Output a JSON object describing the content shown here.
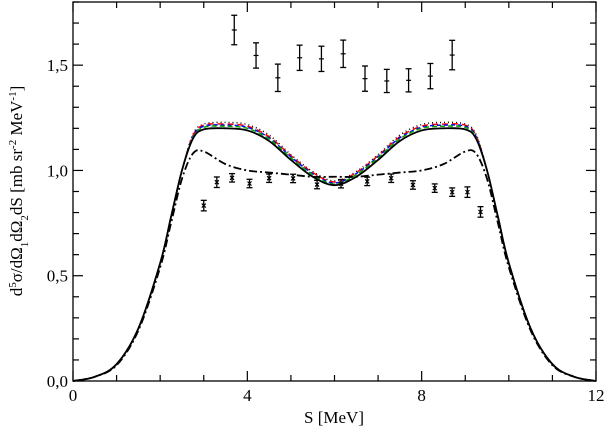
{
  "chart_data": {
    "type": "line",
    "xlabel": "S [MeV]",
    "ylabel_parts": [
      {
        "t": "d",
        "s": ""
      },
      {
        "t": "5",
        "s": "sup"
      },
      {
        "t": "σ/dΩ",
        "s": ""
      },
      {
        "t": "1",
        "s": "sub"
      },
      {
        "t": "dΩ",
        "s": ""
      },
      {
        "t": "2",
        "s": "sub"
      },
      {
        "t": "dS [mb sr",
        "s": ""
      },
      {
        "t": "-2",
        "s": "sup"
      },
      {
        "t": " MeV",
        "s": ""
      },
      {
        "t": "-1",
        "s": "sup"
      },
      {
        "t": "]",
        "s": ""
      }
    ],
    "xlim": [
      0,
      12
    ],
    "ylim": [
      0,
      1.8
    ],
    "x_ticks": [
      {
        "v": 0,
        "label": "0"
      },
      {
        "v": 4,
        "label": "4"
      },
      {
        "v": 8,
        "label": "8"
      },
      {
        "v": 12,
        "label": "12"
      }
    ],
    "y_ticks": [
      {
        "v": 0,
        "label": "0,0"
      },
      {
        "v": 0.5,
        "label": "0,5"
      },
      {
        "v": 1.0,
        "label": "1,0"
      },
      {
        "v": 1.5,
        "label": "1,5"
      }
    ],
    "grid": false,
    "half_curves_x": [
      0,
      0.5,
      1,
      1.5,
      2,
      2.25,
      2.5,
      2.75,
      3,
      3.5,
      4,
      4.5,
      5,
      5.5,
      6
    ],
    "series": [
      {
        "name": "solid",
        "color": "#000000",
        "dash": "",
        "values": [
          0,
          0.02,
          0.08,
          0.25,
          0.56,
          0.78,
          1.0,
          1.15,
          1.195,
          1.2,
          1.19,
          1.14,
          1.05,
          0.97,
          0.93
        ]
      },
      {
        "name": "dash-dot",
        "color": "#000000",
        "dash": "8,3,2,3",
        "values": [
          0,
          0.02,
          0.075,
          0.24,
          0.54,
          0.75,
          0.96,
          1.08,
          1.09,
          1.03,
          1.0,
          0.99,
          0.98,
          0.97,
          0.97
        ]
      },
      {
        "name": "green-dashed",
        "color": "#00a000",
        "dash": "5,3",
        "values": [
          0,
          0.02,
          0.08,
          0.25,
          0.56,
          0.78,
          1.0,
          1.155,
          1.205,
          1.21,
          1.2,
          1.15,
          1.06,
          0.98,
          0.935
        ]
      },
      {
        "name": "blue-dashed",
        "color": "#0000ff",
        "dash": "4,3",
        "values": [
          0,
          0.02,
          0.08,
          0.25,
          0.56,
          0.78,
          1.0,
          1.16,
          1.21,
          1.215,
          1.205,
          1.155,
          1.065,
          0.985,
          0.94
        ]
      },
      {
        "name": "red-dashed",
        "color": "#ff0000",
        "dash": "6,4",
        "values": [
          0,
          0.02,
          0.08,
          0.25,
          0.56,
          0.78,
          1.0,
          1.165,
          1.215,
          1.22,
          1.21,
          1.16,
          1.07,
          0.99,
          0.945
        ]
      },
      {
        "name": "dotted",
        "color": "#000000",
        "dash": "1,3",
        "values": [
          0,
          0.02,
          0.08,
          0.25,
          0.56,
          0.78,
          1.0,
          1.17,
          1.22,
          1.228,
          1.218,
          1.168,
          1.075,
          0.995,
          0.95
        ]
      }
    ],
    "data_upper": {
      "x": [
        3.7,
        4.2,
        4.7,
        5.2,
        5.7,
        6.2,
        6.7,
        7.2,
        7.7,
        8.2,
        8.7
      ],
      "y": [
        1.667,
        1.546,
        1.44,
        1.535,
        1.53,
        1.554,
        1.436,
        1.425,
        1.428,
        1.448,
        1.548
      ],
      "err": [
        0.07,
        0.06,
        0.065,
        0.06,
        0.06,
        0.065,
        0.06,
        0.055,
        0.055,
        0.06,
        0.07
      ]
    },
    "data_lower": {
      "x": [
        3.0,
        3.3,
        3.65,
        4.05,
        4.5,
        5.05,
        5.6,
        6.15,
        6.75,
        7.3,
        7.8,
        8.3,
        8.7,
        9.05,
        9.35
      ],
      "y": [
        0.833,
        0.944,
        0.965,
        0.938,
        0.963,
        0.962,
        0.933,
        0.937,
        0.948,
        0.963,
        0.931,
        0.916,
        0.897,
        0.897,
        0.803
      ],
      "err": [
        0.025,
        0.025,
        0.02,
        0.02,
        0.02,
        0.02,
        0.02,
        0.02,
        0.02,
        0.02,
        0.02,
        0.02,
        0.02,
        0.025,
        0.025
      ]
    }
  }
}
